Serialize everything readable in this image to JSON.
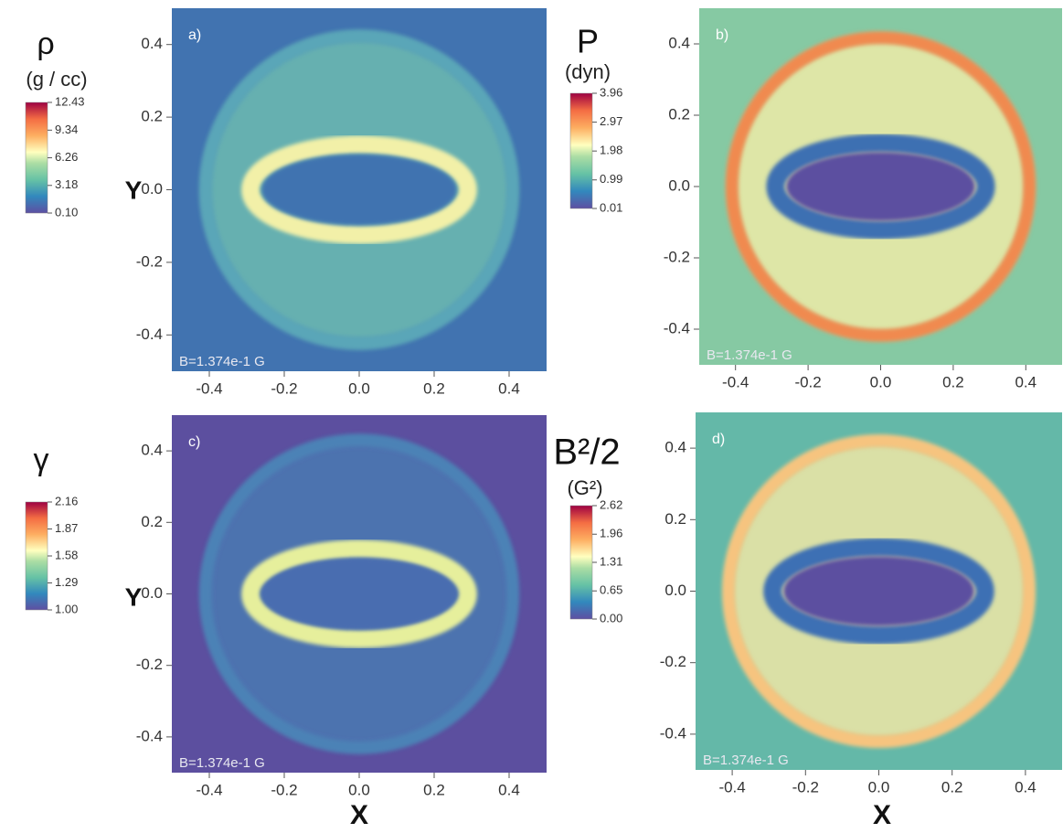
{
  "chart_data": [
    {
      "type": "heatmap",
      "panel_label": "a)",
      "annotation": "B=1.374e-1 G",
      "ylabel": "Y",
      "xlim": [
        -0.5,
        0.5
      ],
      "ylim": [
        -0.5,
        0.5
      ],
      "xticks": [
        -0.4,
        -0.2,
        {
          "value": 0,
          "label": "0.0"
        },
        0.2,
        0.4
      ],
      "yticks": [
        -0.4,
        -0.2,
        {
          "value": 0,
          "label": "0.0"
        },
        0.2,
        0.4
      ],
      "colorbar": {
        "title": "ρ",
        "unit": "(g / cc)",
        "clim": [
          0.1,
          12.43
        ],
        "ticks": [
          {
            "value": 0.1,
            "label": "0.10"
          },
          3.18,
          6.26,
          9.34,
          12.43
        ]
      }
    },
    {
      "type": "heatmap",
      "panel_label": "b)",
      "annotation": "B=1.374e-1 G",
      "xlim": [
        -0.5,
        0.5
      ],
      "ylim": [
        -0.5,
        0.5
      ],
      "xticks": [
        -0.4,
        -0.2,
        {
          "value": 0,
          "label": "0.0"
        },
        0.2,
        0.4
      ],
      "yticks": [
        -0.4,
        -0.2,
        {
          "value": 0,
          "label": "0.0"
        },
        0.2,
        0.4
      ],
      "colorbar": {
        "title": "P",
        "unit": "(dyn)",
        "clim": [
          0.01,
          3.96
        ],
        "ticks": [
          0.01,
          0.99,
          1.98,
          2.97,
          3.96
        ]
      }
    },
    {
      "type": "heatmap",
      "panel_label": "c)",
      "annotation": "B=1.374e-1 G",
      "ylabel": "Y",
      "xlabel": "X",
      "xlim": [
        -0.5,
        0.5
      ],
      "ylim": [
        -0.5,
        0.5
      ],
      "xticks": [
        -0.4,
        -0.2,
        {
          "value": 0,
          "label": "0.0"
        },
        0.2,
        0.4
      ],
      "yticks": [
        -0.4,
        -0.2,
        {
          "value": 0,
          "label": "0.0"
        },
        0.2,
        0.4
      ],
      "colorbar": {
        "title": "γ",
        "clim": [
          1,
          2.16
        ],
        "ticks": [
          {
            "value": 1,
            "label": "1.00"
          },
          1.29,
          1.58,
          1.87,
          2.16
        ]
      }
    },
    {
      "type": "heatmap",
      "panel_label": "d)",
      "annotation": "B=1.374e-1 G",
      "xlabel": "X",
      "xlim": [
        -0.5,
        0.5
      ],
      "ylim": [
        -0.5,
        0.5
      ],
      "xticks": [
        -0.4,
        -0.2,
        {
          "value": 0,
          "label": "0.0"
        },
        0.2,
        0.4
      ],
      "yticks": [
        -0.4,
        -0.2,
        {
          "value": 0,
          "label": "0.0"
        },
        0.2,
        0.4
      ],
      "colorbar": {
        "title": "B²/2",
        "unit": "(G²)",
        "clim": [
          0,
          2.62
        ],
        "ticks": [
          {
            "value": 0,
            "label": "0.00"
          },
          0.65,
          1.31,
          1.96,
          2.62
        ]
      }
    }
  ]
}
